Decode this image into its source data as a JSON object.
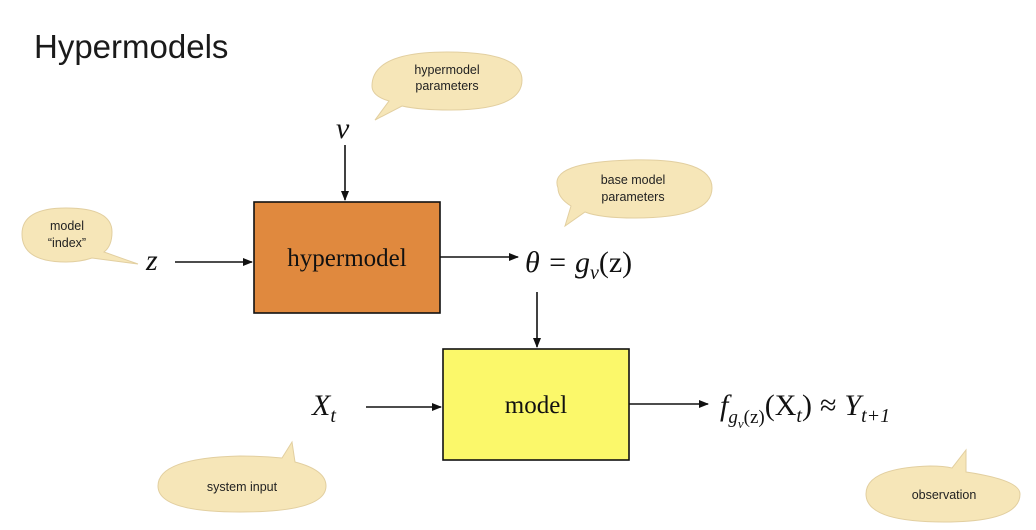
{
  "slide": {
    "title": "Hypermodels"
  },
  "callouts": {
    "hypermodel_params": [
      "hypermodel",
      "parameters"
    ],
    "base_model_params": [
      "base model",
      "parameters"
    ],
    "model_index": [
      "model",
      "“index”"
    ],
    "system_input": "system input",
    "observation": "observation"
  },
  "boxes": {
    "hypermodel": {
      "label": "hypermodel",
      "fill": "#e0893e"
    },
    "model": {
      "label": "model",
      "fill": "#fbf86a"
    }
  },
  "symbols": {
    "nu": "ν",
    "z": "z",
    "theta_eq": "θ = g",
    "theta_sub": "ν",
    "theta_arg": "(z)",
    "x": "X",
    "x_sub": "t",
    "f": "f",
    "f_sub_g": "g",
    "f_sub_nu": "ν",
    "f_sub_z": "(z)",
    "f_arg": "(X",
    "f_arg_sub": "t",
    "f_arg_close": ")",
    "approx": "≈",
    "y": "Y",
    "y_sub": "t+1"
  },
  "colors": {
    "callout_fill": "#f6e6b8",
    "stroke": "#111111"
  }
}
